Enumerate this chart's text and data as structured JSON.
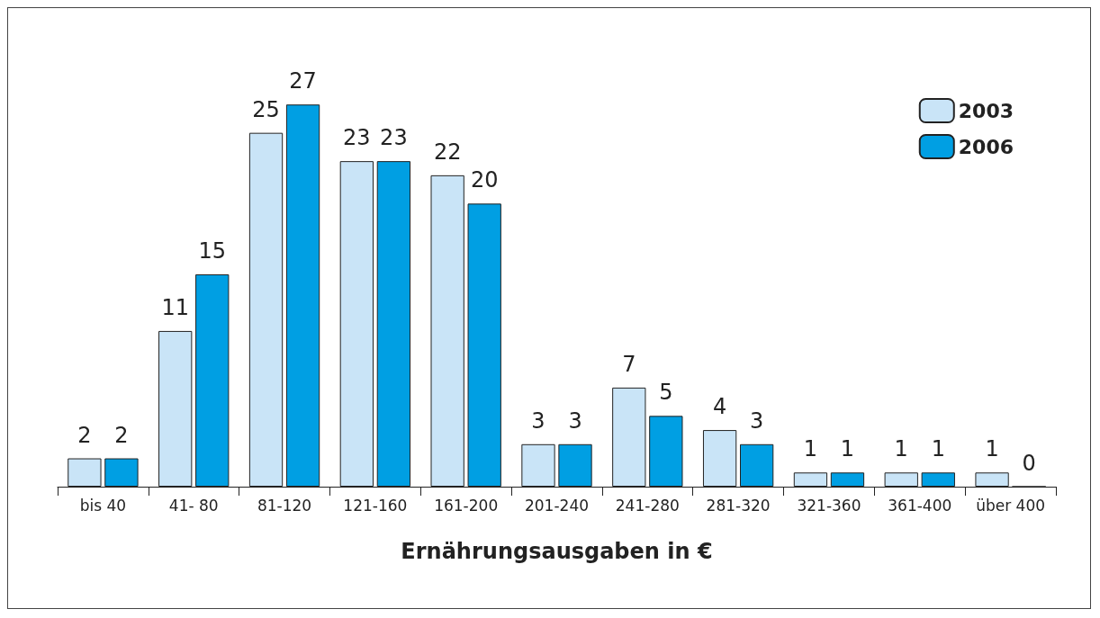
{
  "chart_data": {
    "type": "bar",
    "xlabel": "Ernährungsausgaben in €",
    "categories": [
      "bis 40",
      "41- 80",
      "81-120",
      "121-160",
      "161-200",
      "201-240",
      "241-280",
      "281-320",
      "321-360",
      "361-400",
      "über 400"
    ],
    "series": [
      {
        "name": "2003",
        "color": "#c9e4f7",
        "values": [
          2,
          11,
          25,
          23,
          22,
          3,
          7,
          4,
          1,
          1,
          1
        ]
      },
      {
        "name": "2006",
        "color": "#009fe3",
        "values": [
          2,
          15,
          27,
          23,
          20,
          3,
          5,
          3,
          1,
          1,
          0
        ]
      }
    ],
    "data_labels": true,
    "legend": "top right",
    "grid": false
  }
}
